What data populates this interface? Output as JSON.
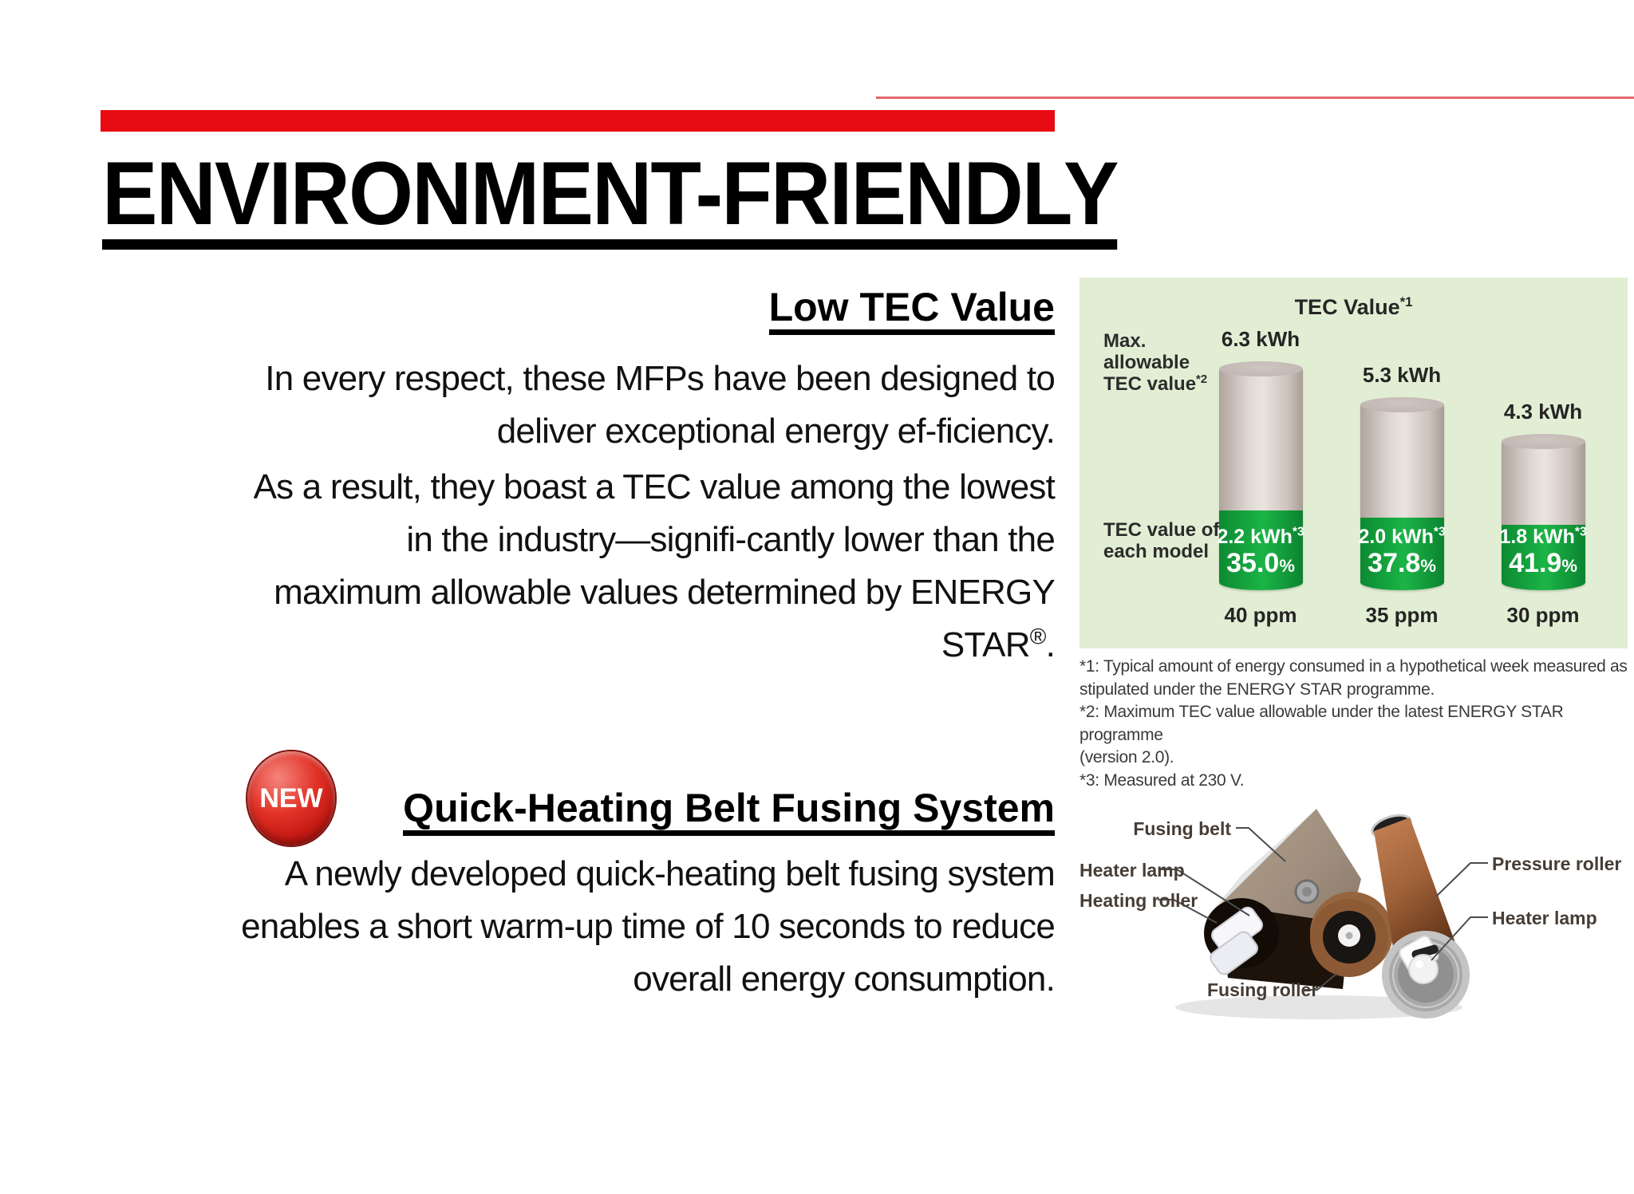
{
  "header": {
    "title": "ENVIRONMENT-FRIENDLY"
  },
  "low_tec": {
    "heading": "Low TEC Value",
    "para1": [
      "In every respect, these MFPs have been designed to",
      "deliver exceptional energy ef-ficiency."
    ],
    "para2": [
      "As a result, they boast a TEC value among the lowest",
      "in the industry—signifi-cantly lower than the",
      "maximum allowable values determined by ENERGY"
    ],
    "para2_last": {
      "base": "STAR",
      "sup": "®",
      "end": "."
    }
  },
  "quick_heating": {
    "badge": "NEW",
    "heading": "Quick-Heating Belt Fusing System",
    "para": [
      "A newly developed quick-heating belt fusing system",
      "enables a short warm-up time of 10 seconds to reduce",
      "overall energy consumption."
    ]
  },
  "chart_data": {
    "type": "bar",
    "title": "TEC Value",
    "title_sup": "*1",
    "background": "#e2eed4",
    "legend_position": "none",
    "grid": false,
    "bar_color_max": "#d6cdc8",
    "bar_color_tec": "#14a03c",
    "left_label_top_line1": "Max. allowable",
    "left_label_top_line2": "TEC value",
    "left_label_top_sup": "*2",
    "left_label_bottom_line1": "TEC value of",
    "left_label_bottom_line2": "each model",
    "pct_sign": "%",
    "categories": [
      "40 ppm",
      "35 ppm",
      "30 ppm"
    ],
    "series": [
      {
        "name": "Max. allowable TEC value",
        "unit": "kWh",
        "values": [
          6.3,
          5.3,
          4.3
        ]
      },
      {
        "name": "TEC value of each model",
        "unit": "kWh",
        "values": [
          2.2,
          2.0,
          1.8
        ]
      }
    ],
    "percent_of_max": [
      35.0,
      37.8,
      41.9
    ],
    "bars": [
      {
        "max_label": "6.3 kWh",
        "max_value": 6.3,
        "kwh": "2.2 kWh",
        "sup": "*3",
        "tec_value": 2.2,
        "pct": "35.0",
        "ppm": "40 ppm"
      },
      {
        "max_label": "5.3 kWh",
        "max_value": 5.3,
        "kwh": "2.0 kWh",
        "sup": "*3",
        "tec_value": 2.0,
        "pct": "37.8",
        "ppm": "35 ppm"
      },
      {
        "max_label": "4.3 kWh",
        "max_value": 4.3,
        "kwh": "1.8 kWh",
        "sup": "*3",
        "tec_value": 1.8,
        "pct": "41.9",
        "ppm": "30 ppm"
      }
    ],
    "footnotes": [
      "*1: Typical amount of energy consumed in a hypothetical week measured as",
      "stipulated under the ENERGY STAR programme.",
      "*2: Maximum TEC value allowable under the latest ENERGY STAR programme",
      "(version 2.0).",
      "*3: Measured at 230 V."
    ]
  },
  "diagram": {
    "labels": {
      "fusing_belt": "Fusing belt",
      "heater_lamp_left": "Heater lamp",
      "heating_roller": "Heating roller",
      "pressure_roller": "Pressure roller",
      "heater_lamp_right": "Heater lamp",
      "fusing_roller": "Fusing roller"
    }
  },
  "colors": {
    "accent_red": "#e60b12",
    "thin_line_red": "#e4676b",
    "chart_green": "#14a03c",
    "chart_bg": "#e2eed4"
  }
}
